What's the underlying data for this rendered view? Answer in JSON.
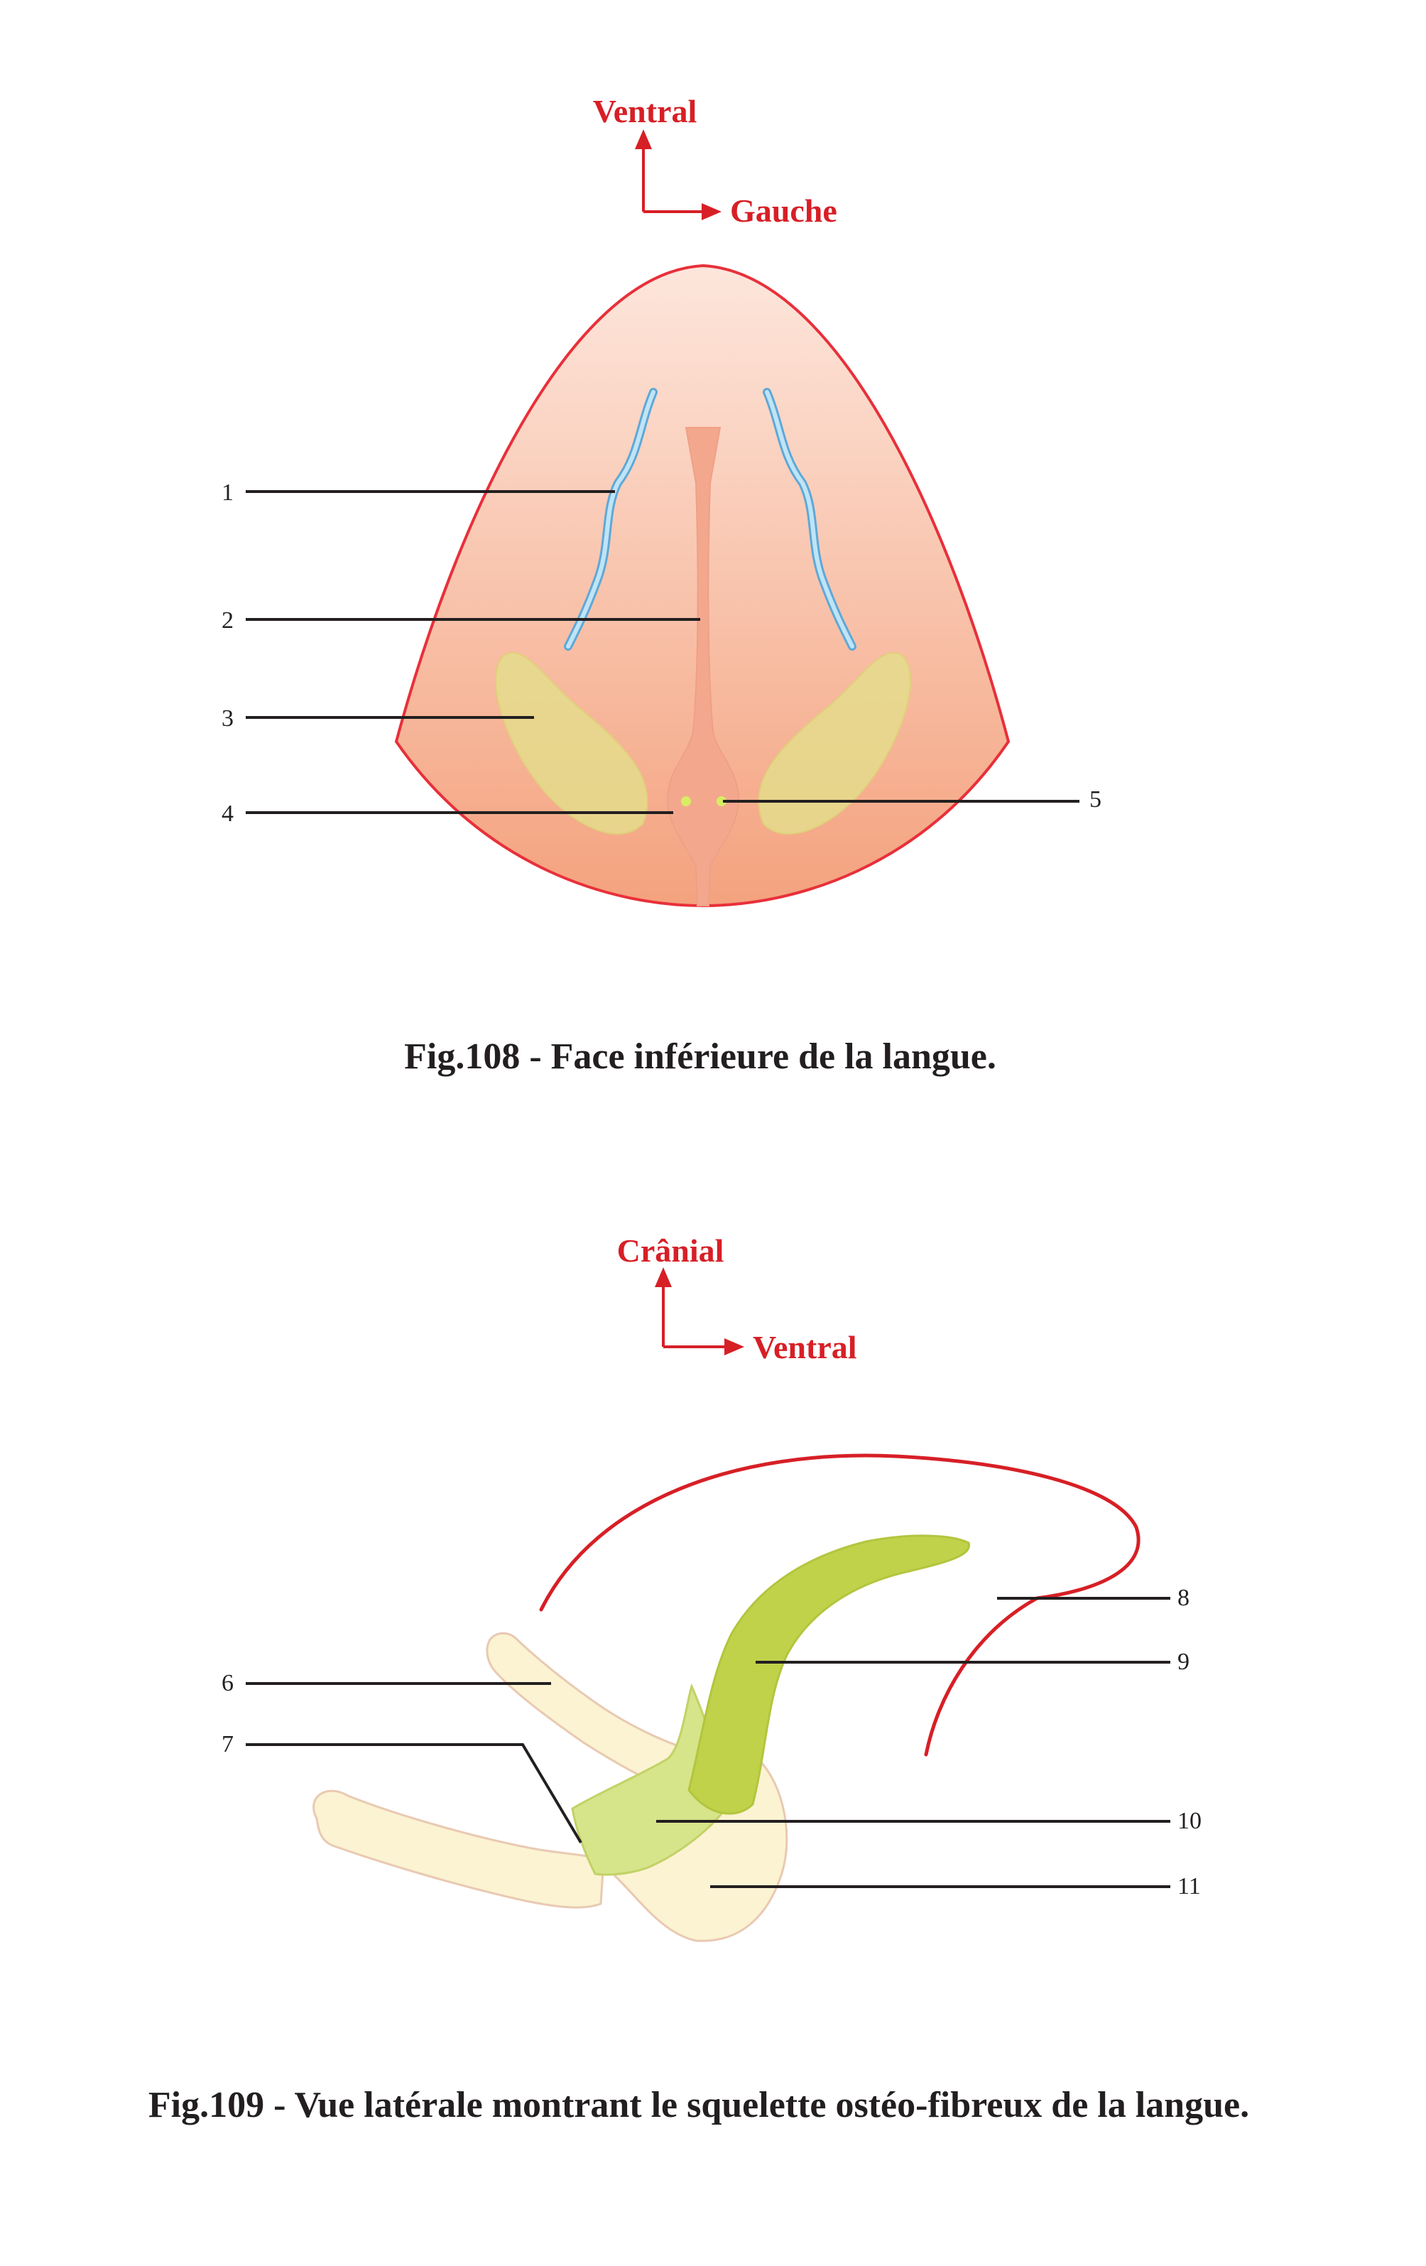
{
  "figure_108": {
    "orientation": {
      "vertical": "Ventral",
      "horizontal": "Gauche"
    },
    "labels": [
      "1",
      "2",
      "3",
      "4",
      "5"
    ],
    "caption": "Fig.108 - Face inférieure de la langue."
  },
  "figure_109": {
    "orientation": {
      "vertical": "Crânial",
      "horizontal": "Ventral"
    },
    "labels": [
      "6",
      "7",
      "8",
      "9",
      "10",
      "11"
    ],
    "caption": "Fig.109 - Vue latérale montrant le squelette ostéo-fibreux de la langue."
  },
  "colors": {
    "accent_red": "#d71f26",
    "tongue_top": "#fde6dc",
    "tongue_bottom": "#f4a27e",
    "vein_blue": "#7fc4e8",
    "caruncle_yellow": "#e5dc8c",
    "cartilage_green": "#bfd24a",
    "fibrous_green": "#d6e48a",
    "bone_cream": "#fbf3d2"
  }
}
